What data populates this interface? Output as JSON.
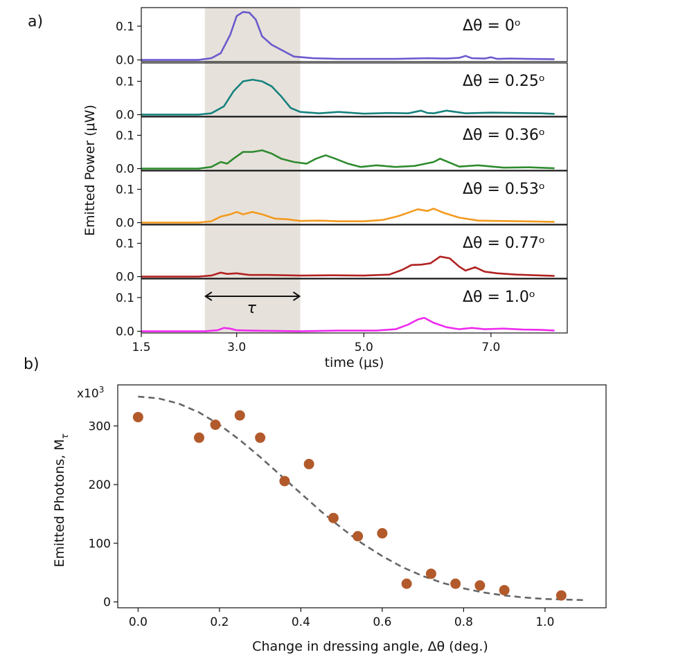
{
  "panel_a_label": "a)",
  "panel_b_label": "b)",
  "chart_data": [
    {
      "type": "line",
      "panel": "a",
      "xlabel": "time (μs)",
      "ylabel": "Emitted Power (μW)",
      "xlim": [
        1.5,
        8.2
      ],
      "ylim": [
        -0.005,
        0.155
      ],
      "xticks": [
        1.5,
        3.0,
        5.0,
        7.0
      ],
      "xtick_labels": [
        "1.5",
        "3.0",
        "5.0",
        "7.0"
      ],
      "yticks": [
        0.0,
        0.1
      ],
      "ytick_labels": [
        "0.0",
        "0.1"
      ],
      "shaded_region": [
        2.5,
        4.0
      ],
      "tau_label": "τ",
      "series": [
        {
          "name": "Δθ = 0°",
          "label": "Δθ = 0ᵒ",
          "color": "#6a5acd",
          "x": [
            1.5,
            2.0,
            2.4,
            2.6,
            2.75,
            2.9,
            3.0,
            3.1,
            3.2,
            3.3,
            3.4,
            3.55,
            3.7,
            3.9,
            4.2,
            4.6,
            5.0,
            5.5,
            6.0,
            6.3,
            6.5,
            6.6,
            6.7,
            6.9,
            7.0,
            7.1,
            7.3,
            7.6,
            8.0
          ],
          "y": [
            0.0,
            0.0,
            0.0,
            0.005,
            0.02,
            0.075,
            0.13,
            0.142,
            0.14,
            0.12,
            0.07,
            0.045,
            0.03,
            0.01,
            0.005,
            0.003,
            0.003,
            0.003,
            0.005,
            0.004,
            0.006,
            0.012,
            0.005,
            0.004,
            0.008,
            0.003,
            0.004,
            0.003,
            0.002
          ]
        },
        {
          "name": "Δθ = 0.25°",
          "label": "Δθ = 0.25ᵒ",
          "color": "#17827d",
          "x": [
            1.5,
            2.0,
            2.4,
            2.6,
            2.8,
            2.95,
            3.1,
            3.25,
            3.4,
            3.55,
            3.7,
            3.85,
            4.0,
            4.3,
            4.6,
            5.0,
            5.4,
            5.7,
            5.9,
            6.0,
            6.1,
            6.3,
            6.6,
            7.0,
            7.4,
            7.8,
            8.0
          ],
          "y": [
            0.0,
            0.0,
            0.0,
            0.004,
            0.025,
            0.07,
            0.1,
            0.105,
            0.1,
            0.085,
            0.055,
            0.02,
            0.008,
            0.004,
            0.008,
            0.003,
            0.005,
            0.004,
            0.012,
            0.005,
            0.004,
            0.012,
            0.004,
            0.006,
            0.005,
            0.004,
            0.002
          ]
        },
        {
          "name": "Δθ = 0.36°",
          "label": "Δθ = 0.36ᵒ",
          "color": "#2e8b2e",
          "x": [
            1.5,
            2.0,
            2.4,
            2.6,
            2.75,
            2.85,
            2.95,
            3.1,
            3.25,
            3.4,
            3.55,
            3.7,
            3.9,
            4.1,
            4.25,
            4.4,
            4.55,
            4.75,
            4.95,
            5.2,
            5.5,
            5.8,
            6.1,
            6.2,
            6.35,
            6.5,
            6.8,
            7.2,
            7.6,
            8.0
          ],
          "y": [
            0.0,
            0.0,
            0.0,
            0.005,
            0.02,
            0.015,
            0.03,
            0.05,
            0.05,
            0.055,
            0.045,
            0.03,
            0.02,
            0.015,
            0.03,
            0.04,
            0.03,
            0.015,
            0.005,
            0.01,
            0.005,
            0.008,
            0.02,
            0.03,
            0.018,
            0.006,
            0.01,
            0.003,
            0.004,
            0.001
          ]
        },
        {
          "name": "Δθ = 0.53°",
          "label": "Δθ = 0.53ᵒ",
          "color": "#f39a1e",
          "x": [
            1.5,
            2.0,
            2.4,
            2.6,
            2.75,
            2.9,
            3.0,
            3.1,
            3.25,
            3.4,
            3.6,
            3.8,
            4.0,
            4.3,
            4.6,
            5.0,
            5.3,
            5.55,
            5.7,
            5.85,
            6.0,
            6.1,
            6.25,
            6.5,
            6.8,
            7.1,
            7.5,
            8.0
          ],
          "y": [
            0.0,
            0.0,
            0.0,
            0.004,
            0.018,
            0.025,
            0.032,
            0.025,
            0.032,
            0.025,
            0.012,
            0.01,
            0.005,
            0.006,
            0.004,
            0.004,
            0.008,
            0.02,
            0.03,
            0.04,
            0.035,
            0.042,
            0.03,
            0.015,
            0.006,
            0.005,
            0.004,
            0.002
          ]
        },
        {
          "name": "Δθ = 0.77°",
          "label": "Δθ = 0.77ᵒ",
          "color": "#b22222",
          "x": [
            1.5,
            2.0,
            2.4,
            2.6,
            2.75,
            2.85,
            3.0,
            3.2,
            3.5,
            4.0,
            4.5,
            5.0,
            5.4,
            5.6,
            5.75,
            5.9,
            6.05,
            6.2,
            6.35,
            6.5,
            6.6,
            6.75,
            6.9,
            7.1,
            7.4,
            7.7,
            8.0
          ],
          "y": [
            0.0,
            0.0,
            0.0,
            0.003,
            0.012,
            0.008,
            0.01,
            0.005,
            0.005,
            0.003,
            0.004,
            0.003,
            0.006,
            0.02,
            0.035,
            0.036,
            0.04,
            0.06,
            0.055,
            0.03,
            0.018,
            0.028,
            0.015,
            0.01,
            0.006,
            0.004,
            0.002
          ]
        },
        {
          "name": "Δθ = 1.0°",
          "label": "Δθ = 1.0ᵒ",
          "color": "#ee2aee",
          "x": [
            1.5,
            2.0,
            2.5,
            2.7,
            2.8,
            2.9,
            3.0,
            3.2,
            3.6,
            4.0,
            4.6,
            5.2,
            5.5,
            5.7,
            5.85,
            5.95,
            6.1,
            6.3,
            6.5,
            6.7,
            6.9,
            7.2,
            7.5,
            7.8,
            8.0
          ],
          "y": [
            0.0,
            0.0,
            0.0,
            0.003,
            0.01,
            0.008,
            0.003,
            0.002,
            0.001,
            0.0,
            0.002,
            0.002,
            0.006,
            0.02,
            0.035,
            0.04,
            0.025,
            0.012,
            0.006,
            0.01,
            0.006,
            0.008,
            0.005,
            0.004,
            0.002
          ]
        }
      ]
    },
    {
      "type": "scatter",
      "panel": "b",
      "xlabel": "Change in dressing angle, Δθ  (deg.)",
      "ylabel": "Emitted Photons, M",
      "ylabel_subscript": "τ",
      "y_multiplier": "x10",
      "y_multiplier_exp": "3",
      "xlim": [
        -0.05,
        1.15
      ],
      "ylim": [
        -10,
        370
      ],
      "xticks": [
        0.0,
        0.2,
        0.4,
        0.6,
        0.8,
        1.0
      ],
      "xtick_labels": [
        "0.0",
        "0.2",
        "0.4",
        "0.6",
        "0.8",
        "1.0"
      ],
      "yticks": [
        0,
        100,
        200,
        300
      ],
      "ytick_labels": [
        "0",
        "100",
        "200",
        "300"
      ],
      "points_color": "#b25a2b",
      "points": {
        "x": [
          0.0,
          0.15,
          0.19,
          0.25,
          0.3,
          0.36,
          0.42,
          0.48,
          0.54,
          0.6,
          0.66,
          0.72,
          0.78,
          0.84,
          0.9,
          1.04
        ],
        "y": [
          315,
          280,
          302,
          318,
          280,
          206,
          235,
          143,
          112,
          117,
          31,
          48,
          31,
          28,
          20,
          11
        ]
      },
      "fit": {
        "label": "fit",
        "style": "dashed",
        "color": "#666666",
        "x": [
          0.0,
          0.05,
          0.1,
          0.15,
          0.2,
          0.25,
          0.3,
          0.35,
          0.4,
          0.45,
          0.5,
          0.55,
          0.6,
          0.65,
          0.7,
          0.75,
          0.8,
          0.85,
          0.9,
          0.95,
          1.0,
          1.05,
          1.1
        ],
        "y": [
          350,
          347,
          338,
          323,
          302,
          276,
          247,
          216,
          185,
          154,
          126,
          100,
          78,
          59,
          44,
          32,
          23,
          16,
          11,
          7.5,
          5,
          4,
          3
        ]
      }
    }
  ]
}
